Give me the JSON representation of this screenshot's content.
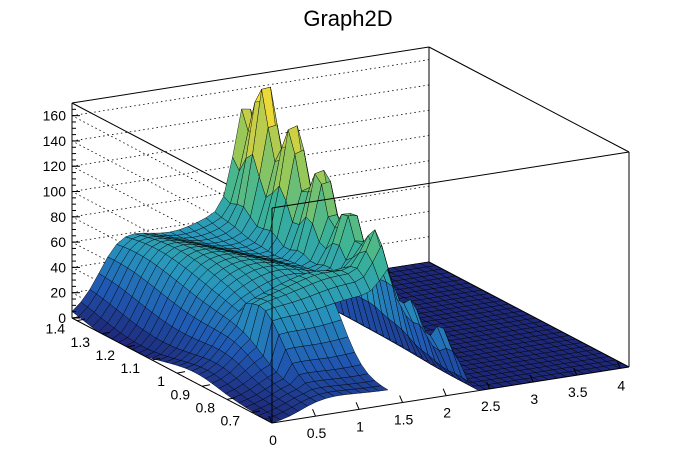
{
  "chart_data": {
    "type": "surface",
    "title": "Graph2D",
    "xlabel": "",
    "ylabel": "",
    "zlabel": "",
    "xlim": [
      0,
      4.1
    ],
    "ylim": [
      0.62,
      1.42
    ],
    "zlim": [
      0,
      170
    ],
    "x_ticks": [
      "0",
      "0.5",
      "1",
      "1.5",
      "2",
      "2.5",
      "3",
      "3.5",
      "4"
    ],
    "y_ticks": [
      "0.7",
      "0.8",
      "0.9",
      "1",
      "1.1",
      "1.2",
      "1.3",
      "1.4"
    ],
    "z_ticks": [
      "0",
      "20",
      "40",
      "60",
      "80",
      "100",
      "120",
      "140",
      "160"
    ],
    "hole": {
      "x_range": [
        1.3,
        2.0
      ],
      "y_range": [
        0.62,
        0.83
      ]
    },
    "profile_back_edge": [
      {
        "x": 0.0,
        "z": 12
      },
      {
        "x": 0.5,
        "z": 45
      },
      {
        "x": 1.0,
        "z": 60
      },
      {
        "x": 1.5,
        "z": 65
      },
      {
        "x": 2.0,
        "z": 170
      },
      {
        "x": 2.5,
        "z": 0
      },
      {
        "x": 3.0,
        "z": 0
      },
      {
        "x": 4.0,
        "z": 0
      }
    ],
    "peaks": [
      {
        "x": 1.85,
        "y": 1.4,
        "z": 155
      },
      {
        "x": 1.95,
        "y": 1.38,
        "z": 150
      },
      {
        "x": 2.05,
        "y": 1.36,
        "z": 160
      },
      {
        "x": 2.1,
        "y": 1.33,
        "z": 172
      },
      {
        "x": 2.15,
        "y": 1.3,
        "z": 170
      }
    ],
    "grid": true,
    "colormap": "viridis-like (navy to yellow)"
  }
}
